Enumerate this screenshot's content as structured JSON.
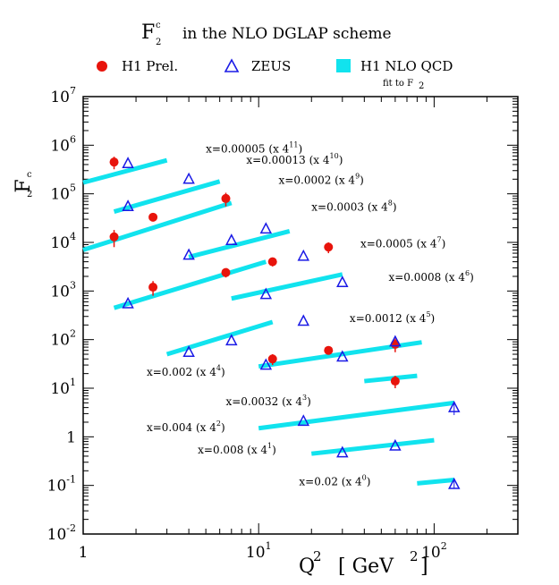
{
  "title": {
    "main": "F",
    "main_sup": "c",
    "main_sub": "2",
    "rest": "in the NLO DGLAP scheme"
  },
  "legend": [
    {
      "label": "H1 Prel.",
      "marker": "filled-circle",
      "color": "#e8140c"
    },
    {
      "label": "ZEUS",
      "marker": "open-triangle",
      "color": "#1a1ae6"
    },
    {
      "label": "H1 NLO QCD",
      "sublabel_main": "fit to F",
      "sublabel_sub": "2",
      "marker": "filled-square",
      "color": "#11e3ee"
    }
  ],
  "axes": {
    "xlabel_main": "Q",
    "xlabel_sup": "2",
    "xlabel_unit_main": "[ GeV",
    "xlabel_unit_sup": "2",
    "xlabel_unit_end": "]",
    "ylabel_main": "F",
    "ylabel_sup": "c",
    "ylabel_sub": "2",
    "x_ticks": [
      {
        "value": 1,
        "base": "1",
        "exp": ""
      },
      {
        "value": 10,
        "base": "10",
        "exp": "1"
      },
      {
        "value": 100,
        "base": "10",
        "exp": "2"
      }
    ],
    "y_ticks": [
      {
        "value": 10000000.0,
        "base": "10",
        "exp": "7"
      },
      {
        "value": 1000000.0,
        "base": "10",
        "exp": "6"
      },
      {
        "value": 100000.0,
        "base": "10",
        "exp": "5"
      },
      {
        "value": 10000.0,
        "base": "10",
        "exp": "4"
      },
      {
        "value": 1000.0,
        "base": "10",
        "exp": "3"
      },
      {
        "value": 100.0,
        "base": "10",
        "exp": "2"
      },
      {
        "value": 10.0,
        "base": "10",
        "exp": "1"
      },
      {
        "value": 1,
        "base": "1",
        "exp": ""
      },
      {
        "value": 0.1,
        "base": "10",
        "exp": "-1"
      },
      {
        "value": 0.01,
        "base": "10",
        "exp": "-2"
      }
    ]
  },
  "chart_data": {
    "type": "scatter",
    "scale": "log-log",
    "title": "F2c in the NLO DGLAP scheme",
    "xlabel": "Q^2 [GeV^2]",
    "ylabel": "F2c",
    "xlim": [
      1,
      300
    ],
    "ylim": [
      0.01,
      10000000
    ],
    "bins": [
      {
        "label_main": "x=0.00005 (x 4",
        "label_exp": "11",
        "label_end": ")",
        "anchor": [
          5.0,
          700000
        ],
        "fit": {
          "q2": [
            1.0,
            3.0
          ],
          "f2": [
            170000,
            490000
          ]
        }
      },
      {
        "label_main": "x=0.00013 (x 4",
        "label_exp": "10",
        "label_end": ")",
        "anchor": [
          8.5,
          420000
        ],
        "fit": {
          "q2": [
            1.5,
            6.0
          ],
          "f2": [
            43000,
            180000
          ]
        }
      },
      {
        "label_main": "x=0.0002 (x 4",
        "label_exp": "9",
        "label_end": ")",
        "anchor": [
          13.0,
          160000
        ],
        "fit": {
          "q2": [
            1.0,
            7.0
          ],
          "f2": [
            7000,
            65000
          ]
        }
      },
      {
        "label_main": "x=0.0003 (x 4",
        "label_exp": "8",
        "label_end": ")",
        "anchor": [
          20.0,
          45000
        ],
        "fit": {
          "q2": [
            4.0,
            15.0
          ],
          "f2": [
            5000,
            17000
          ]
        }
      },
      {
        "label_main": "x=0.0005 (x 4",
        "label_exp": "7",
        "label_end": ")",
        "anchor": [
          38.0,
          8000
        ],
        "fit": {
          "q2": [
            7.0,
            30.0
          ],
          "f2": [
            700,
            2200
          ]
        }
      },
      {
        "label_main": "x=0.0008 (x 4",
        "label_exp": "6",
        "label_end": ")",
        "anchor": [
          55.0,
          1600
        ],
        "fit": {
          "q2": [
            1.5,
            11.0
          ],
          "f2": [
            450,
            4000
          ]
        }
      },
      {
        "label_main": "x=0.0012 (x 4",
        "label_exp": "5",
        "label_end": ")",
        "anchor": [
          33.0,
          230
        ],
        "fit": {
          "q2": [
            3.0,
            12.0
          ],
          "f2": [
            50,
            230
          ]
        }
      },
      {
        "label_main": "x=0.002 (x 4",
        "label_exp": "4",
        "label_end": ")",
        "anchor": [
          2.3,
          18
        ],
        "fit": {
          "q2": [
            10.0,
            85.0
          ],
          "f2": [
            28,
            88
          ]
        }
      },
      {
        "label_main": "x=0.0032 (x 4",
        "label_exp": "3",
        "label_end": ")",
        "anchor": [
          6.5,
          4.5
        ],
        "fit": {
          "q2": [
            40.0,
            80.0
          ],
          "f2": [
            14,
            18
          ]
        }
      },
      {
        "label_main": "x=0.004 (x 4",
        "label_exp": "2",
        "label_end": ")",
        "anchor": [
          2.3,
          1.3
        ],
        "fit": {
          "q2": [
            10.0,
            130.0
          ],
          "f2": [
            1.5,
            5.0
          ]
        }
      },
      {
        "label_main": "x=0.008 (x 4",
        "label_exp": "1",
        "label_end": ")",
        "anchor": [
          4.5,
          0.45
        ],
        "fit": {
          "q2": [
            20.0,
            100.0
          ],
          "f2": [
            0.45,
            0.85
          ]
        }
      },
      {
        "label_main": "x=0.02 (x 4",
        "label_exp": "0",
        "label_end": ")",
        "anchor": [
          17.0,
          0.1
        ],
        "fit": {
          "q2": [
            80.0,
            130.0
          ],
          "f2": [
            0.11,
            0.13
          ]
        }
      }
    ],
    "series": [
      {
        "name": "H1 Prel.",
        "marker": "filled-circle",
        "points": [
          [
            1.5,
            450000,
            130000
          ],
          [
            1.5,
            13000,
            5000
          ],
          [
            2.5,
            33000,
            6000
          ],
          [
            2.5,
            1200,
            400
          ],
          [
            6.5,
            80000,
            25000
          ],
          [
            6.5,
            2400,
            500
          ],
          [
            12.0,
            4000,
            800
          ],
          [
            12.0,
            40,
            10
          ],
          [
            25.0,
            8000,
            2000
          ],
          [
            25.0,
            60,
            10
          ],
          [
            60.0,
            80,
            25
          ],
          [
            60.0,
            14,
            4
          ]
        ]
      },
      {
        "name": "ZEUS",
        "marker": "open-triangle",
        "points": [
          [
            1.8,
            420000,
            0
          ],
          [
            1.8,
            55000,
            0
          ],
          [
            1.8,
            550,
            0
          ],
          [
            4.0,
            200000,
            0
          ],
          [
            4.0,
            5500,
            0
          ],
          [
            4.0,
            55,
            0
          ],
          [
            7.0,
            11000,
            0
          ],
          [
            7.0,
            95,
            0
          ],
          [
            11.0,
            19000,
            0
          ],
          [
            11.0,
            850,
            0
          ],
          [
            11.0,
            30,
            0
          ],
          [
            18.0,
            5200,
            0
          ],
          [
            18.0,
            240,
            0
          ],
          [
            18.0,
            2.1,
            0
          ],
          [
            30.0,
            1500,
            0
          ],
          [
            30.0,
            44,
            0
          ],
          [
            30.0,
            0.47,
            0
          ],
          [
            60.0,
            90,
            0
          ],
          [
            60.0,
            0.65,
            0
          ],
          [
            130.0,
            4.0,
            1.2
          ],
          [
            130.0,
            0.105,
            0.02
          ]
        ]
      }
    ]
  }
}
